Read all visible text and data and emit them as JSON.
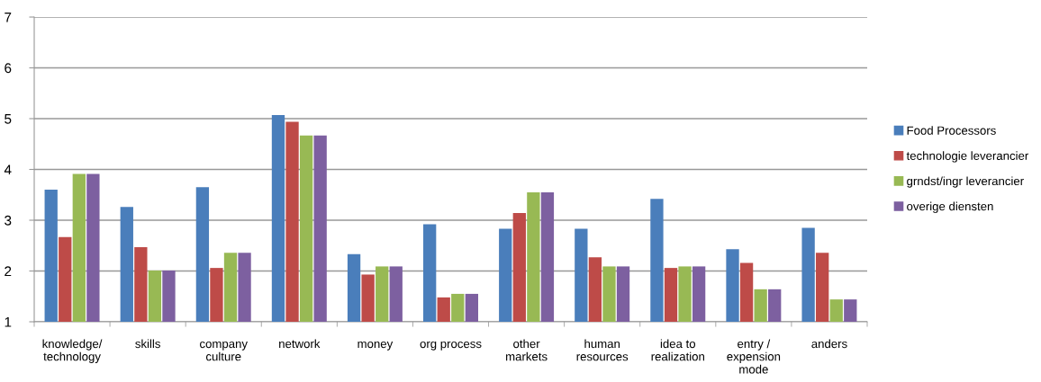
{
  "chart_data": {
    "type": "bar",
    "categories": [
      "knowledge/\ntechnology",
      "skills",
      "company\nculture",
      "network",
      "money",
      "org process",
      "other\nmarkets",
      "human\nresources",
      "idea to\nrealization",
      "entry /\nexpension\nmode",
      "anders"
    ],
    "series": [
      {
        "name": "Food Processors",
        "color": "#4a7ebb",
        "values": [
          3.6,
          3.26,
          3.65,
          5.07,
          2.33,
          2.92,
          2.83,
          2.83,
          3.42,
          2.43,
          2.85
        ]
      },
      {
        "name": "technologie leverancier",
        "color": "#be4b48",
        "values": [
          2.67,
          2.47,
          2.06,
          4.94,
          1.93,
          1.48,
          3.14,
          2.27,
          2.06,
          2.16,
          2.36
        ]
      },
      {
        "name": "grndst/ingr leverancier",
        "color": "#98b954",
        "values": [
          3.91,
          2.01,
          2.36,
          4.67,
          2.09,
          1.55,
          3.55,
          2.09,
          2.09,
          1.64,
          1.44
        ]
      },
      {
        "name": "overige diensten",
        "color": "#7d60a0",
        "values": [
          3.91,
          2.01,
          2.36,
          4.67,
          2.09,
          1.55,
          3.55,
          2.09,
          2.09,
          1.64,
          1.44
        ]
      }
    ],
    "ylim": [
      1,
      7
    ],
    "yticks": [
      1,
      2,
      3,
      4,
      5,
      6,
      7
    ],
    "grid": "y",
    "legend": "right"
  }
}
